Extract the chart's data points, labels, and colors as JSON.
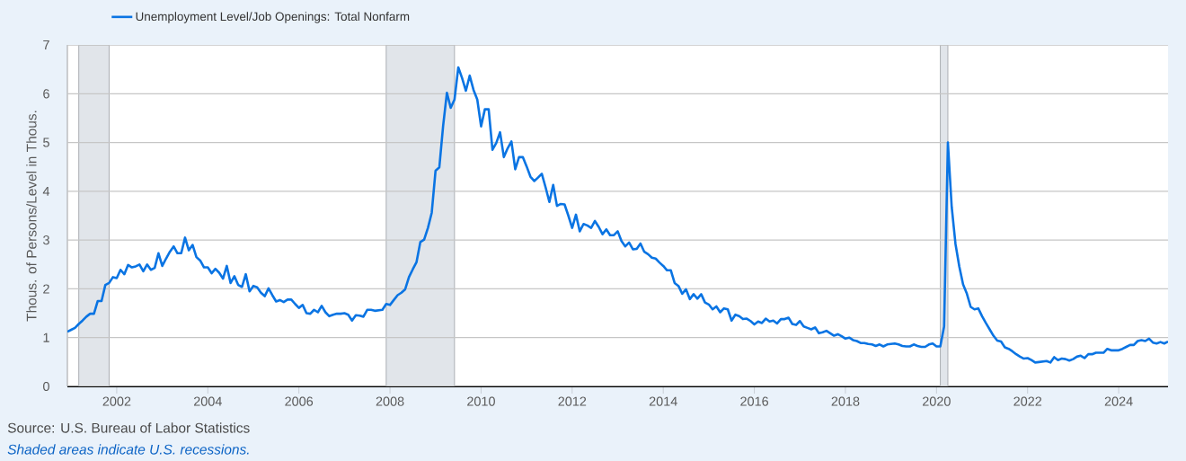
{
  "chart_data": {
    "type": "line",
    "ylabel": "Thous. of Persons/Level in Thous.",
    "annotations": [
      "Source: U.S. Bureau of Labor Statistics",
      "Shaded areas indicate U.S. recessions."
    ],
    "legend": "top left",
    "grid": "y",
    "marker": "none",
    "xlim": [
      "2000-12",
      "2025-02"
    ],
    "ylim": [
      0,
      7
    ],
    "xticks": [
      "2002",
      "2004",
      "2006",
      "2008",
      "2010",
      "2012",
      "2014",
      "2016",
      "2018",
      "2020",
      "2022",
      "2024"
    ],
    "yticks": [
      0,
      1,
      2,
      3,
      4,
      5,
      6,
      7
    ],
    "bands": [
      {
        "axis": "x",
        "from": "2001-03",
        "to": "2001-11",
        "color": "#e1e5ea"
      },
      {
        "axis": "x",
        "from": "2007-12",
        "to": "2009-06",
        "color": "#e1e5ea"
      },
      {
        "axis": "x",
        "from": "2020-02",
        "to": "2020-04",
        "color": "#e1e5ea"
      }
    ],
    "x": [
      "2000-12",
      "2001-01",
      "2001-02",
      "2001-03",
      "2001-04",
      "2001-05",
      "2001-06",
      "2001-07",
      "2001-08",
      "2001-09",
      "2001-10",
      "2001-11",
      "2001-12",
      "2002-01",
      "2002-02",
      "2002-03",
      "2002-04",
      "2002-05",
      "2002-06",
      "2002-07",
      "2002-08",
      "2002-09",
      "2002-10",
      "2002-11",
      "2002-12",
      "2003-01",
      "2003-02",
      "2003-03",
      "2003-04",
      "2003-05",
      "2003-06",
      "2003-07",
      "2003-08",
      "2003-09",
      "2003-10",
      "2003-11",
      "2003-12",
      "2004-01",
      "2004-02",
      "2004-03",
      "2004-04",
      "2004-05",
      "2004-06",
      "2004-07",
      "2004-08",
      "2004-09",
      "2004-10",
      "2004-11",
      "2004-12",
      "2005-01",
      "2005-02",
      "2005-03",
      "2005-04",
      "2005-05",
      "2005-06",
      "2005-07",
      "2005-08",
      "2005-09",
      "2005-10",
      "2005-11",
      "2005-12",
      "2006-01",
      "2006-02",
      "2006-03",
      "2006-04",
      "2006-05",
      "2006-06",
      "2006-07",
      "2006-08",
      "2006-09",
      "2006-10",
      "2006-11",
      "2006-12",
      "2007-01",
      "2007-02",
      "2007-03",
      "2007-04",
      "2007-05",
      "2007-06",
      "2007-07",
      "2007-08",
      "2007-09",
      "2007-10",
      "2007-11",
      "2007-12",
      "2008-01",
      "2008-02",
      "2008-03",
      "2008-04",
      "2008-05",
      "2008-06",
      "2008-07",
      "2008-08",
      "2008-09",
      "2008-10",
      "2008-11",
      "2008-12",
      "2009-01",
      "2009-02",
      "2009-03",
      "2009-04",
      "2009-05",
      "2009-06",
      "2009-07",
      "2009-08",
      "2009-09",
      "2009-10",
      "2009-11",
      "2009-12",
      "2010-01",
      "2010-02",
      "2010-03",
      "2010-04",
      "2010-05",
      "2010-06",
      "2010-07",
      "2010-08",
      "2010-09",
      "2010-10",
      "2010-11",
      "2010-12",
      "2011-01",
      "2011-02",
      "2011-03",
      "2011-04",
      "2011-05",
      "2011-06",
      "2011-07",
      "2011-08",
      "2011-09",
      "2011-10",
      "2011-11",
      "2011-12",
      "2012-01",
      "2012-02",
      "2012-03",
      "2012-04",
      "2012-05",
      "2012-06",
      "2012-07",
      "2012-08",
      "2012-09",
      "2012-10",
      "2012-11",
      "2012-12",
      "2013-01",
      "2013-02",
      "2013-03",
      "2013-04",
      "2013-05",
      "2013-06",
      "2013-07",
      "2013-08",
      "2013-09",
      "2013-10",
      "2013-11",
      "2013-12",
      "2014-01",
      "2014-02",
      "2014-03",
      "2014-04",
      "2014-05",
      "2014-06",
      "2014-07",
      "2014-08",
      "2014-09",
      "2014-10",
      "2014-11",
      "2014-12",
      "2015-01",
      "2015-02",
      "2015-03",
      "2015-04",
      "2015-05",
      "2015-06",
      "2015-07",
      "2015-08",
      "2015-09",
      "2015-10",
      "2015-11",
      "2015-12",
      "2016-01",
      "2016-02",
      "2016-03",
      "2016-04",
      "2016-05",
      "2016-06",
      "2016-07",
      "2016-08",
      "2016-09",
      "2016-10",
      "2016-11",
      "2016-12",
      "2017-01",
      "2017-02",
      "2017-03",
      "2017-04",
      "2017-05",
      "2017-06",
      "2017-07",
      "2017-08",
      "2017-09",
      "2017-10",
      "2017-11",
      "2017-12",
      "2018-01",
      "2018-02",
      "2018-03",
      "2018-04",
      "2018-05",
      "2018-06",
      "2018-07",
      "2018-08",
      "2018-09",
      "2018-10",
      "2018-11",
      "2018-12",
      "2019-01",
      "2019-02",
      "2019-03",
      "2019-04",
      "2019-05",
      "2019-06",
      "2019-07",
      "2019-08",
      "2019-09",
      "2019-10",
      "2019-11",
      "2019-12",
      "2020-01",
      "2020-02",
      "2020-03",
      "2020-04",
      "2020-05",
      "2020-06",
      "2020-07",
      "2020-08",
      "2020-09",
      "2020-10",
      "2020-11",
      "2020-12",
      "2021-01",
      "2021-02",
      "2021-03",
      "2021-04",
      "2021-05",
      "2021-06",
      "2021-07",
      "2021-08",
      "2021-09",
      "2021-10",
      "2021-11",
      "2021-12",
      "2022-01",
      "2022-02",
      "2022-03",
      "2022-04",
      "2022-05",
      "2022-06",
      "2022-07",
      "2022-08",
      "2022-09",
      "2022-10",
      "2022-11",
      "2022-12",
      "2023-01",
      "2023-02",
      "2023-03",
      "2023-04",
      "2023-05",
      "2023-06",
      "2023-07",
      "2023-08",
      "2023-09",
      "2023-10",
      "2023-11",
      "2023-12",
      "2024-01",
      "2024-02",
      "2024-03",
      "2024-04",
      "2024-05",
      "2024-06",
      "2024-07",
      "2024-08",
      "2024-09",
      "2024-10",
      "2024-11",
      "2024-12",
      "2025-01",
      "2025-02"
    ],
    "series": [
      {
        "name": "Unemployment Level/Job Openings: Total Nonfarm",
        "color": "#0a74e3",
        "values": [
          1.12,
          1.16,
          1.2,
          1.28,
          1.35,
          1.43,
          1.49,
          1.49,
          1.75,
          1.75,
          2.08,
          2.12,
          2.24,
          2.22,
          2.39,
          2.3,
          2.49,
          2.44,
          2.46,
          2.5,
          2.36,
          2.5,
          2.39,
          2.43,
          2.73,
          2.47,
          2.62,
          2.76,
          2.87,
          2.73,
          2.73,
          3.05,
          2.79,
          2.9,
          2.65,
          2.58,
          2.44,
          2.44,
          2.32,
          2.41,
          2.33,
          2.21,
          2.47,
          2.12,
          2.26,
          2.08,
          2.04,
          2.3,
          1.95,
          2.06,
          2.03,
          1.92,
          1.85,
          2.01,
          1.87,
          1.74,
          1.77,
          1.73,
          1.78,
          1.78,
          1.69,
          1.61,
          1.67,
          1.5,
          1.49,
          1.57,
          1.52,
          1.65,
          1.52,
          1.44,
          1.47,
          1.49,
          1.49,
          1.5,
          1.47,
          1.35,
          1.46,
          1.45,
          1.43,
          1.57,
          1.57,
          1.55,
          1.56,
          1.57,
          1.69,
          1.67,
          1.77,
          1.87,
          1.92,
          1.99,
          2.24,
          2.4,
          2.55,
          2.96,
          3.01,
          3.25,
          3.56,
          4.42,
          4.49,
          5.34,
          6.02,
          5.71,
          5.88,
          6.54,
          6.32,
          6.06,
          6.37,
          6.08,
          5.88,
          5.33,
          5.68,
          5.68,
          4.85,
          4.99,
          5.21,
          4.7,
          4.88,
          5.02,
          4.45,
          4.7,
          4.7,
          4.51,
          4.3,
          4.21,
          4.28,
          4.36,
          4.08,
          3.78,
          4.13,
          3.7,
          3.74,
          3.73,
          3.5,
          3.25,
          3.52,
          3.18,
          3.33,
          3.3,
          3.25,
          3.39,
          3.27,
          3.12,
          3.22,
          3.1,
          3.1,
          3.18,
          2.98,
          2.87,
          2.95,
          2.81,
          2.82,
          2.93,
          2.76,
          2.71,
          2.64,
          2.62,
          2.54,
          2.47,
          2.38,
          2.38,
          2.12,
          2.06,
          1.9,
          1.99,
          1.79,
          1.89,
          1.8,
          1.89,
          1.72,
          1.68,
          1.58,
          1.64,
          1.52,
          1.6,
          1.58,
          1.35,
          1.47,
          1.44,
          1.38,
          1.39,
          1.34,
          1.27,
          1.33,
          1.3,
          1.39,
          1.33,
          1.35,
          1.29,
          1.38,
          1.38,
          1.41,
          1.28,
          1.26,
          1.34,
          1.23,
          1.2,
          1.17,
          1.21,
          1.09,
          1.11,
          1.14,
          1.09,
          1.04,
          1.07,
          1.03,
          0.98,
          1.0,
          0.95,
          0.93,
          0.89,
          0.89,
          0.87,
          0.86,
          0.83,
          0.86,
          0.82,
          0.86,
          0.87,
          0.88,
          0.86,
          0.83,
          0.82,
          0.82,
          0.86,
          0.83,
          0.81,
          0.81,
          0.86,
          0.88,
          0.82,
          0.82,
          1.23,
          5.0,
          3.68,
          2.92,
          2.46,
          2.09,
          1.9,
          1.63,
          1.58,
          1.6,
          1.44,
          1.3,
          1.17,
          1.04,
          0.94,
          0.92,
          0.8,
          0.77,
          0.72,
          0.66,
          0.61,
          0.57,
          0.58,
          0.54,
          0.49,
          0.5,
          0.51,
          0.52,
          0.49,
          0.6,
          0.54,
          0.57,
          0.56,
          0.53,
          0.56,
          0.61,
          0.63,
          0.58,
          0.66,
          0.66,
          0.69,
          0.69,
          0.69,
          0.77,
          0.74,
          0.74,
          0.74,
          0.77,
          0.81,
          0.85,
          0.85,
          0.93,
          0.95,
          0.93,
          0.98,
          0.9,
          0.88,
          0.91,
          0.88,
          0.92
        ]
      }
    ]
  }
}
